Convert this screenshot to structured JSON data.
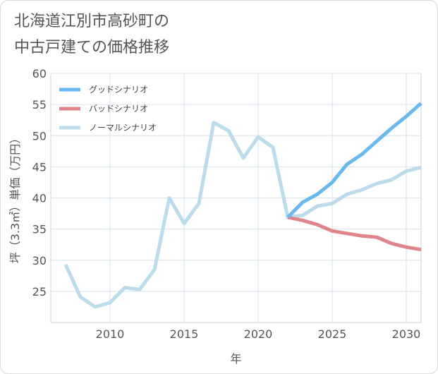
{
  "chart_data": {
    "type": "line",
    "title_lines": [
      "北海道江別市高砂町の",
      "中古戸建ての価格推移"
    ],
    "xlabel": "年",
    "ylabel": "坪（3.3㎡）単価（万円）",
    "xlim": [
      2006,
      2031
    ],
    "ylim": [
      20,
      60
    ],
    "xticks": [
      2010,
      2015,
      2020,
      2025,
      2030
    ],
    "yticks": [
      25,
      30,
      35,
      40,
      45,
      50,
      55,
      60
    ],
    "grid": true,
    "legend_position": "top-left",
    "series": [
      {
        "name": "グッドシナリオ",
        "color": "#6bb8ec",
        "x": [
          2022,
          2023,
          2024,
          2025,
          2026,
          2027,
          2028,
          2029,
          2030,
          2031
        ],
        "y": [
          36.9,
          39.3,
          40.6,
          42.5,
          45.4,
          47.0,
          49.1,
          51.2,
          53.1,
          55.2
        ]
      },
      {
        "name": "バッドシナリオ",
        "color": "#e0848c",
        "x": [
          2022,
          2023,
          2024,
          2025,
          2026,
          2027,
          2028,
          2029,
          2030,
          2031
        ],
        "y": [
          36.9,
          36.4,
          35.7,
          34.7,
          34.3,
          33.9,
          33.7,
          32.7,
          32.1,
          31.7
        ]
      },
      {
        "name": "ノーマルシナリオ",
        "color": "#bcdcec",
        "x": [
          2007,
          2008,
          2009,
          2010,
          2011,
          2012,
          2013,
          2014,
          2015,
          2016,
          2017,
          2018,
          2019,
          2020,
          2021,
          2022,
          2023,
          2024,
          2025,
          2026,
          2027,
          2028,
          2029,
          2030,
          2031
        ],
        "y": [
          29.3,
          24.1,
          22.5,
          23.2,
          25.6,
          25.3,
          28.5,
          40.0,
          35.9,
          39.1,
          52.1,
          50.8,
          46.4,
          49.8,
          48.1,
          36.9,
          37.2,
          38.7,
          39.1,
          40.6,
          41.3,
          42.3,
          42.9,
          44.3,
          44.9
        ]
      }
    ]
  }
}
